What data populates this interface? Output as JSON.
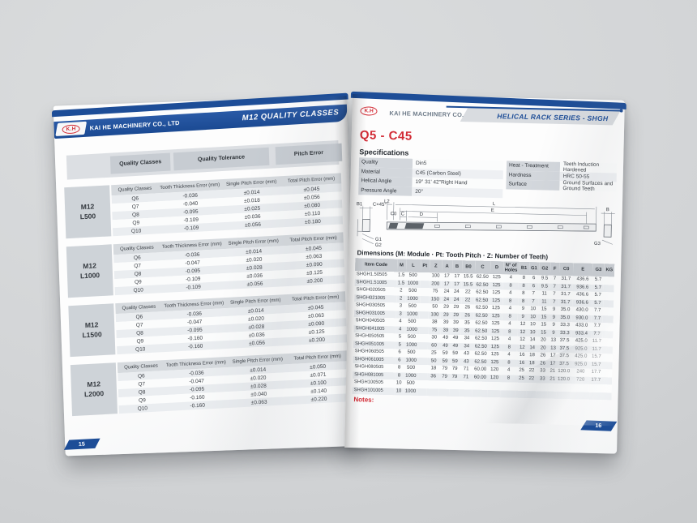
{
  "left_page": {
    "logo": "K.H",
    "company": "KAI HE MACHINERY CO., LTD",
    "banner": "M12 QUALITY CLASSES",
    "page_number": "15",
    "header_cols": [
      "Quality Classes",
      "Quality Tolerance",
      "Pitch Error"
    ],
    "sub_headers": [
      "Quality Classes",
      "Tooth Thickness Error (mm)",
      "Single Pitch Error (mm)",
      "Total Pitch Error (mm)"
    ],
    "blocks": [
      {
        "model": "M12",
        "length": "L500",
        "rows": [
          [
            "Q6",
            "-0.036",
            "±0.014",
            "±0.045"
          ],
          [
            "Q7",
            "-0.040",
            "±0.018",
            "±0.056"
          ],
          [
            "Q8",
            "-0.095",
            "±0.025",
            "±0.080"
          ],
          [
            "Q9",
            "-0.109",
            "±0.036",
            "±0.110"
          ],
          [
            "Q10",
            "-0.109",
            "±0.056",
            "±0.180"
          ]
        ]
      },
      {
        "model": "M12",
        "length": "L1000",
        "rows": [
          [
            "Q6",
            "-0.036",
            "±0.014",
            "±0.045"
          ],
          [
            "Q7",
            "-0.047",
            "±0.020",
            "±0.063"
          ],
          [
            "Q8",
            "-0.095",
            "±0.028",
            "±0.090"
          ],
          [
            "Q9",
            "-0.109",
            "±0.036",
            "±0.125"
          ],
          [
            "Q10",
            "-0.109",
            "±0.056",
            "±0.200"
          ]
        ]
      },
      {
        "model": "M12",
        "length": "L1500",
        "rows": [
          [
            "Q6",
            "-0.036",
            "±0.014",
            "±0.045"
          ],
          [
            "Q7",
            "-0.047",
            "±0.020",
            "±0.063"
          ],
          [
            "Q8",
            "-0.095",
            "±0.028",
            "±0.090"
          ],
          [
            "Q9",
            "-0.160",
            "±0.036",
            "±0.125"
          ],
          [
            "Q10",
            "-0.160",
            "±0.056",
            "±0.200"
          ]
        ]
      },
      {
        "model": "M12",
        "length": "L2000",
        "rows": [
          [
            "Q6",
            "-0.036",
            "±0.014",
            "±0.050"
          ],
          [
            "Q7",
            "-0.047",
            "±0.020",
            "±0.071"
          ],
          [
            "Q8",
            "-0.095",
            "±0.028",
            "±0.100"
          ],
          [
            "Q9",
            "-0.160",
            "±0.040",
            "±0.140"
          ],
          [
            "Q10",
            "-0.160",
            "±0.063",
            "±0.220"
          ]
        ]
      }
    ]
  },
  "right_page": {
    "logo": "K.H",
    "company": "KAI HE MACHINERY CO., LTD",
    "banner": "HELICAL RACK SERIES - SHGH",
    "page_number": "16",
    "title": "Q5 - C45",
    "spec_heading": "Specifications",
    "spec_left": [
      [
        "Quality",
        "Din5"
      ],
      [
        "Material",
        "C45 (Carbon Steel)"
      ],
      [
        "Helical Angle",
        "19° 31' 42\"Right Hand"
      ],
      [
        "Pressure Angle",
        "20°"
      ]
    ],
    "spec_right": [
      [
        "Heat - Treatment",
        "Teeth Induction Hardened"
      ],
      [
        "Hardness",
        "HRC 50-55"
      ],
      [
        "Surface",
        "Ground Surfaces and Ground Teeth"
      ]
    ],
    "drawing": {
      "l2": "L2",
      "l": "L",
      "e": "E",
      "c0": "C0",
      "c": "C",
      "d": "D",
      "b1": "B1",
      "chamfer": "C×45°",
      "g1": "G1",
      "g2": "G2",
      "b": "B",
      "g3": "G3"
    },
    "dims_heading": "Dimensions (M: Module · Pt: Tooth Pitch · Z: Number of Teeth)",
    "dims_columns": [
      "Item Code",
      "M",
      "L",
      "Pt",
      "Z",
      "A",
      "B",
      "B0",
      "C",
      "D",
      "N° of Holes",
      "B1",
      "G1",
      "G2",
      "F",
      "C0",
      "E",
      "G3",
      "KG"
    ],
    "dims_rows": [
      [
        "SHGH1.50505",
        "1.5",
        "500",
        "",
        "100",
        "17",
        "17",
        "15.5",
        "62.50",
        "125",
        "4",
        "8",
        "6",
        "9.5",
        "7",
        "31.7",
        "436.6",
        "5.7",
        ""
      ],
      [
        "SHGH1.51005",
        "1.5",
        "1000",
        "",
        "200",
        "17",
        "17",
        "15.5",
        "62.50",
        "125",
        "8",
        "8",
        "6",
        "9.5",
        "7",
        "31.7",
        "936.6",
        "5.7",
        ""
      ],
      [
        "SHGH020505",
        "2",
        "500",
        "",
        "75",
        "24",
        "24",
        "22",
        "62.50",
        "125",
        "4",
        "8",
        "7",
        "11",
        "7",
        "31.7",
        "436.6",
        "5.7",
        ""
      ],
      [
        "SHGH021005",
        "2",
        "1000",
        "",
        "150",
        "24",
        "24",
        "22",
        "62.50",
        "125",
        "8",
        "8",
        "7",
        "11",
        "7",
        "31.7",
        "936.6",
        "5.7",
        ""
      ],
      [
        "SHGH030505",
        "3",
        "500",
        "",
        "50",
        "29",
        "29",
        "26",
        "62.50",
        "125",
        "4",
        "9",
        "10",
        "15",
        "9",
        "35.0",
        "430.0",
        "7.7",
        ""
      ],
      [
        "SHGH031005",
        "3",
        "1000",
        "",
        "100",
        "29",
        "29",
        "26",
        "62.50",
        "125",
        "8",
        "9",
        "10",
        "15",
        "9",
        "35.0",
        "930.0",
        "7.7",
        ""
      ],
      [
        "SHGH040505",
        "4",
        "500",
        "",
        "38",
        "39",
        "39",
        "35",
        "62.50",
        "125",
        "4",
        "12",
        "10",
        "15",
        "9",
        "33.3",
        "433.0",
        "7.7",
        ""
      ],
      [
        "SHGH041005",
        "4",
        "1000",
        "",
        "75",
        "39",
        "39",
        "35",
        "62.50",
        "125",
        "8",
        "12",
        "10",
        "15",
        "9",
        "33.3",
        "933.4",
        "7.7",
        ""
      ],
      [
        "SHGH050505",
        "5",
        "500",
        "",
        "30",
        "49",
        "49",
        "34",
        "62.50",
        "125",
        "4",
        "12",
        "14",
        "20",
        "13",
        "37.5",
        "425.0",
        "11.7",
        ""
      ],
      [
        "SHGH051005",
        "5",
        "1000",
        "",
        "60",
        "49",
        "49",
        "34",
        "62.50",
        "125",
        "8",
        "12",
        "14",
        "20",
        "13",
        "37.5",
        "925.0",
        "11.7",
        ""
      ],
      [
        "SHGH060505",
        "6",
        "500",
        "",
        "25",
        "59",
        "59",
        "43",
        "62.50",
        "125",
        "4",
        "16",
        "18",
        "26",
        "17",
        "37.5",
        "425.0",
        "15.7",
        ""
      ],
      [
        "SHGH061005",
        "6",
        "1000",
        "",
        "50",
        "59",
        "59",
        "43",
        "62.50",
        "125",
        "8",
        "16",
        "18",
        "26",
        "17",
        "37.5",
        "925.0",
        "15.7",
        ""
      ],
      [
        "SHGH080505",
        "8",
        "500",
        "",
        "18",
        "79",
        "79",
        "71",
        "60.00",
        "120",
        "4",
        "25",
        "22",
        "33",
        "21",
        "120.0",
        "240",
        "17.7",
        ""
      ],
      [
        "SHGH081005",
        "8",
        "1000",
        "",
        "36",
        "79",
        "79",
        "71",
        "60.00",
        "120",
        "8",
        "25",
        "22",
        "33",
        "21",
        "120.0",
        "720",
        "17.7",
        ""
      ],
      [
        "SHGH100505",
        "10",
        "500",
        "",
        "",
        "",
        "",
        "",
        "",
        "",
        "",
        "",
        "",
        "",
        "",
        "",
        "",
        "",
        ""
      ],
      [
        "SHGH101005",
        "10",
        "1000",
        "",
        "",
        "",
        "",
        "",
        "",
        "",
        "",
        "",
        "",
        "",
        "",
        "",
        "",
        "",
        ""
      ]
    ],
    "notes_label": "Notes:"
  },
  "colors": {
    "brand_blue": "#1d4d97",
    "accent_red": "#d22b35",
    "table_header_gray": "#c9cdd2",
    "stripe_gray": "#eaedf0",
    "label_gray": "#d3d7dc"
  }
}
